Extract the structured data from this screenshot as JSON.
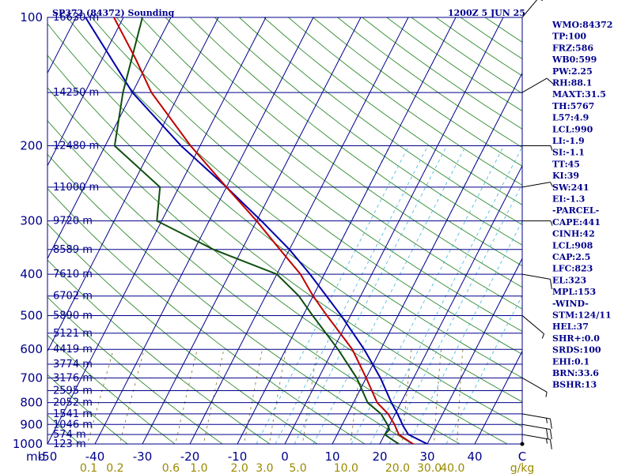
{
  "header": {
    "station": "SP372 (84372) Sounding",
    "time": "1200Z  5 JUN 25"
  },
  "indices": [
    "WMO:84372",
    "TP:100",
    "FRZ:586",
    "WB0:599",
    "PW:2.25",
    "RH:88.1",
    "MAXT:31.5",
    "TH:5767",
    "L57:4.9",
    "LCL:990",
    "LI:-1.9",
    "SI:-1.1",
    "TT:45",
    "KI:39",
    "SW:241",
    "EI:-1.3",
    "-PARCEL-",
    "CAPE:441",
    "CINH:42",
    "LCL:908",
    "CAP:2.5",
    "LFC:823",
    "EL:323",
    "MPL:153",
    "-WIND-",
    "STM:124/11",
    "HEL:37",
    "SHR+:0.0",
    "SRDS:100",
    "EHI:0.1",
    "BRN:33.6",
    "BSHR:13"
  ],
  "axis": {
    "pressure_unit": "mb",
    "mixing_ratio_unit": "g/kg",
    "temp_tick_labels": [
      "-50",
      "-40",
      "-30",
      "-20",
      "-10",
      "0",
      "10",
      "20",
      "30",
      "40",
      "C"
    ],
    "mixing_ratio_labels": [
      "0.1",
      "0.2",
      "0.6",
      "1.0",
      "2.0",
      "3.0",
      "5.0",
      "10.0",
      "20.0",
      "30.0",
      "40.0"
    ]
  },
  "colors": {
    "isobar": "#00008b",
    "isotherm": "#00008b",
    "dry_adiabat": "#2e8b2e",
    "moist_adiabat": "#3cb4dc",
    "mixing_ratio": "#8b7d3a",
    "temperature": "#c00000",
    "dewpoint": "#0f4f0f",
    "parcel": "#0000aa",
    "wind_barb": "#000000",
    "text": "#00008b"
  },
  "chart_data": {
    "type": "skew-t log-p sounding",
    "pressure_levels": [
      {
        "p": 100,
        "label": "100",
        "height": "16630 m"
      },
      {
        "p": 150,
        "label": "",
        "height": "14250 m"
      },
      {
        "p": 200,
        "label": "200",
        "height": "12480 m"
      },
      {
        "p": 250,
        "label": "",
        "height": "11000 m"
      },
      {
        "p": 300,
        "label": "300",
        "height": "9720 m"
      },
      {
        "p": 350,
        "label": "",
        "height": "8589 m"
      },
      {
        "p": 400,
        "label": "400",
        "height": "7610 m"
      },
      {
        "p": 450,
        "label": "",
        "height": "6702 m"
      },
      {
        "p": 500,
        "label": "500",
        "height": "5890 m"
      },
      {
        "p": 550,
        "label": "",
        "height": "5121 m"
      },
      {
        "p": 600,
        "label": "600",
        "height": "4419 m"
      },
      {
        "p": 650,
        "label": "",
        "height": "3774 m"
      },
      {
        "p": 700,
        "label": "700",
        "height": "3176 m"
      },
      {
        "p": 750,
        "label": "",
        "height": "2595 m"
      },
      {
        "p": 800,
        "label": "800",
        "height": "2052 m"
      },
      {
        "p": 850,
        "label": "",
        "height": "1541 m"
      },
      {
        "p": 900,
        "label": "900",
        "height": "1046 m"
      },
      {
        "p": 950,
        "label": "",
        "height": "574 m"
      },
      {
        "p": 1000,
        "label": "1000",
        "height": "123 m"
      }
    ],
    "temp_range": [
      -50,
      50
    ],
    "pressure_range": [
      100,
      1000
    ],
    "temp_ticks": [
      -50,
      -40,
      -30,
      -20,
      -10,
      0,
      10,
      20,
      30,
      40,
      50
    ],
    "mixing_ratios": [
      0.1,
      0.2,
      0.6,
      1.0,
      2.0,
      3.0,
      5.0,
      10.0,
      20.0,
      30.0,
      40.0
    ],
    "temperature": [
      {
        "p": 1010,
        "t": 29
      },
      {
        "p": 1000,
        "t": 27
      },
      {
        "p": 975,
        "t": 25
      },
      {
        "p": 950,
        "t": 23
      },
      {
        "p": 925,
        "t": 22
      },
      {
        "p": 900,
        "t": 21
      },
      {
        "p": 850,
        "t": 18.5
      },
      {
        "p": 800,
        "t": 15
      },
      {
        "p": 700,
        "t": 10
      },
      {
        "p": 600,
        "t": 4
      },
      {
        "p": 500,
        "t": -5
      },
      {
        "p": 450,
        "t": -10
      },
      {
        "p": 400,
        "t": -15
      },
      {
        "p": 350,
        "t": -22
      },
      {
        "p": 300,
        "t": -30
      },
      {
        "p": 250,
        "t": -40
      },
      {
        "p": 200,
        "t": -52
      },
      {
        "p": 150,
        "t": -66
      },
      {
        "p": 125,
        "t": -73
      },
      {
        "p": 100,
        "t": -82
      }
    ],
    "dewpoint": [
      {
        "p": 1010,
        "t": 25
      },
      {
        "p": 1000,
        "t": 24
      },
      {
        "p": 975,
        "t": 22
      },
      {
        "p": 950,
        "t": 20
      },
      {
        "p": 925,
        "t": 20.5
      },
      {
        "p": 900,
        "t": 19.5
      },
      {
        "p": 850,
        "t": 17
      },
      {
        "p": 800,
        "t": 13
      },
      {
        "p": 700,
        "t": 8
      },
      {
        "p": 600,
        "t": 1
      },
      {
        "p": 500,
        "t": -8
      },
      {
        "p": 450,
        "t": -13
      },
      {
        "p": 400,
        "t": -20
      },
      {
        "p": 350,
        "t": -36
      },
      {
        "p": 300,
        "t": -51
      },
      {
        "p": 250,
        "t": -54
      },
      {
        "p": 200,
        "t": -68
      },
      {
        "p": 150,
        "t": -72
      },
      {
        "p": 100,
        "t": -76
      }
    ],
    "parcel": [
      {
        "p": 1010,
        "t": 31.5
      },
      {
        "p": 1000,
        "t": 30
      },
      {
        "p": 950,
        "t": 25
      },
      {
        "p": 908,
        "t": 23
      },
      {
        "p": 850,
        "t": 20.5
      },
      {
        "p": 800,
        "t": 18
      },
      {
        "p": 700,
        "t": 13
      },
      {
        "p": 600,
        "t": 6.5
      },
      {
        "p": 500,
        "t": -2
      },
      {
        "p": 400,
        "t": -13
      },
      {
        "p": 350,
        "t": -20
      },
      {
        "p": 300,
        "t": -29
      },
      {
        "p": 250,
        "t": -40
      },
      {
        "p": 200,
        "t": -54
      },
      {
        "p": 150,
        "t": -70
      },
      {
        "p": 100,
        "t": -88
      }
    ],
    "wind_barbs": [
      {
        "p": 1000,
        "dir": 90,
        "spd": 0
      },
      {
        "p": 950,
        "dir": 100,
        "spd": 15
      },
      {
        "p": 900,
        "dir": 100,
        "spd": 20
      },
      {
        "p": 850,
        "dir": 100,
        "spd": 15
      },
      {
        "p": 700,
        "dir": 120,
        "spd": 5
      },
      {
        "p": 500,
        "dir": 130,
        "spd": 5
      },
      {
        "p": 400,
        "dir": 100,
        "spd": 10
      },
      {
        "p": 300,
        "dir": 90,
        "spd": 5
      },
      {
        "p": 250,
        "dir": 80,
        "spd": 5
      },
      {
        "p": 200,
        "dir": 90,
        "spd": 5
      },
      {
        "p": 150,
        "dir": 60,
        "spd": 10
      },
      {
        "p": 100,
        "dir": 40,
        "spd": 15
      }
    ]
  }
}
